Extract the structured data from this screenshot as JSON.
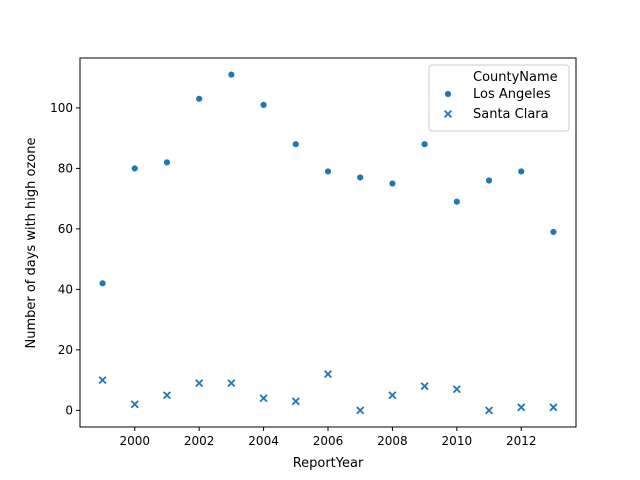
{
  "chart_data": {
    "type": "scatter",
    "xlabel": "ReportYear",
    "ylabel": "Number of days with high ozone",
    "xlim": [
      1998.3,
      2013.7
    ],
    "ylim": [
      -5.5,
      116.5
    ],
    "xticks": [
      2000,
      2002,
      2004,
      2006,
      2008,
      2010,
      2012
    ],
    "yticks": [
      0,
      20,
      40,
      60,
      80,
      100
    ],
    "grid": false,
    "legend": {
      "title": "CountyName",
      "placement": "top-right",
      "entries": [
        {
          "label": "Los Angeles",
          "marker": "circle"
        },
        {
          "label": "Santa Clara",
          "marker": "x"
        }
      ]
    },
    "color": "#1f77b4",
    "series": [
      {
        "name": "Los Angeles",
        "marker": "circle",
        "x": [
          1999,
          2000,
          2001,
          2002,
          2003,
          2004,
          2005,
          2006,
          2007,
          2008,
          2009,
          2010,
          2011,
          2012,
          2013
        ],
        "y": [
          42,
          80,
          82,
          103,
          111,
          101,
          88,
          79,
          77,
          75,
          88,
          69,
          76,
          79,
          59
        ]
      },
      {
        "name": "Santa Clara",
        "marker": "x",
        "x": [
          1999,
          2000,
          2001,
          2002,
          2003,
          2004,
          2005,
          2006,
          2007,
          2008,
          2009,
          2010,
          2011,
          2012,
          2013
        ],
        "y": [
          10,
          2,
          5,
          9,
          9,
          4,
          3,
          12,
          0,
          5,
          8,
          7,
          0,
          1,
          1
        ]
      }
    ]
  }
}
